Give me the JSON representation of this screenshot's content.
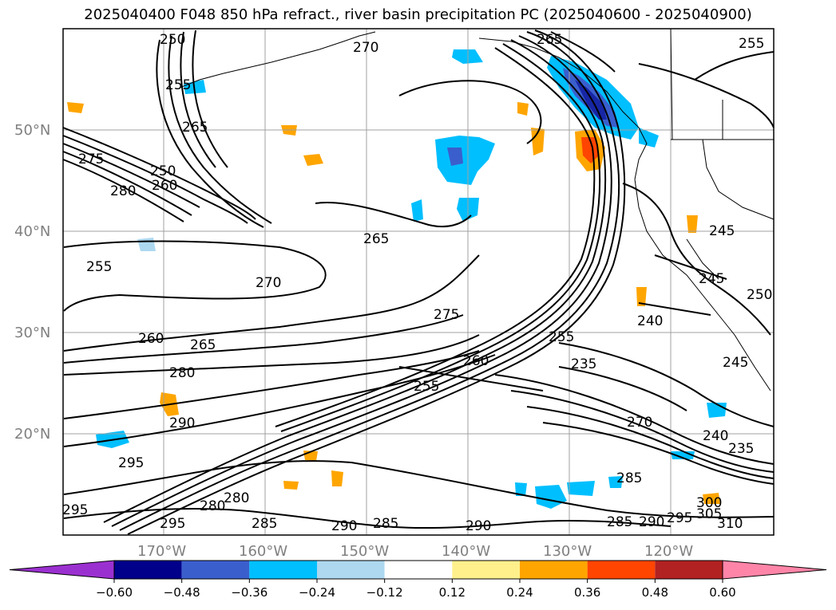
{
  "title": "2025040400 F048 850 hPa refract., river basin precipitation PC (2025040600 - 2025040900)",
  "map": {
    "lat_labels": [
      "50°N",
      "40°N",
      "30°N",
      "20°N"
    ],
    "lon_labels": [
      "170°W",
      "160°W",
      "150°W",
      "140°W",
      "130°W",
      "120°W"
    ],
    "contour_labels": [
      "250",
      "270",
      "265",
      "255",
      "255",
      "265",
      "275",
      "250",
      "260",
      "280",
      "255",
      "270",
      "265",
      "275",
      "260",
      "265",
      "280",
      "290",
      "295",
      "295",
      "295",
      "280",
      "280",
      "285",
      "290",
      "285",
      "255",
      "260",
      "290",
      "255",
      "235",
      "270",
      "240",
      "235",
      "285",
      "285",
      "290",
      "295",
      "300",
      "305",
      "310",
      "240",
      "245",
      "250",
      "245",
      "245"
    ]
  },
  "colorbar": {
    "tick_labels": [
      "−0.60",
      "−0.48",
      "−0.36",
      "−0.24",
      "−0.12",
      "0.12",
      "0.24",
      "0.36",
      "0.48",
      "0.60"
    ],
    "colors": [
      "#9b30d0",
      "#00008b",
      "#3a5fcd",
      "#00bfff",
      "#add8f0",
      "#ffffff",
      "#fff08c",
      "#ffa500",
      "#ff4500",
      "#b22222",
      "#ff85a8"
    ]
  }
}
